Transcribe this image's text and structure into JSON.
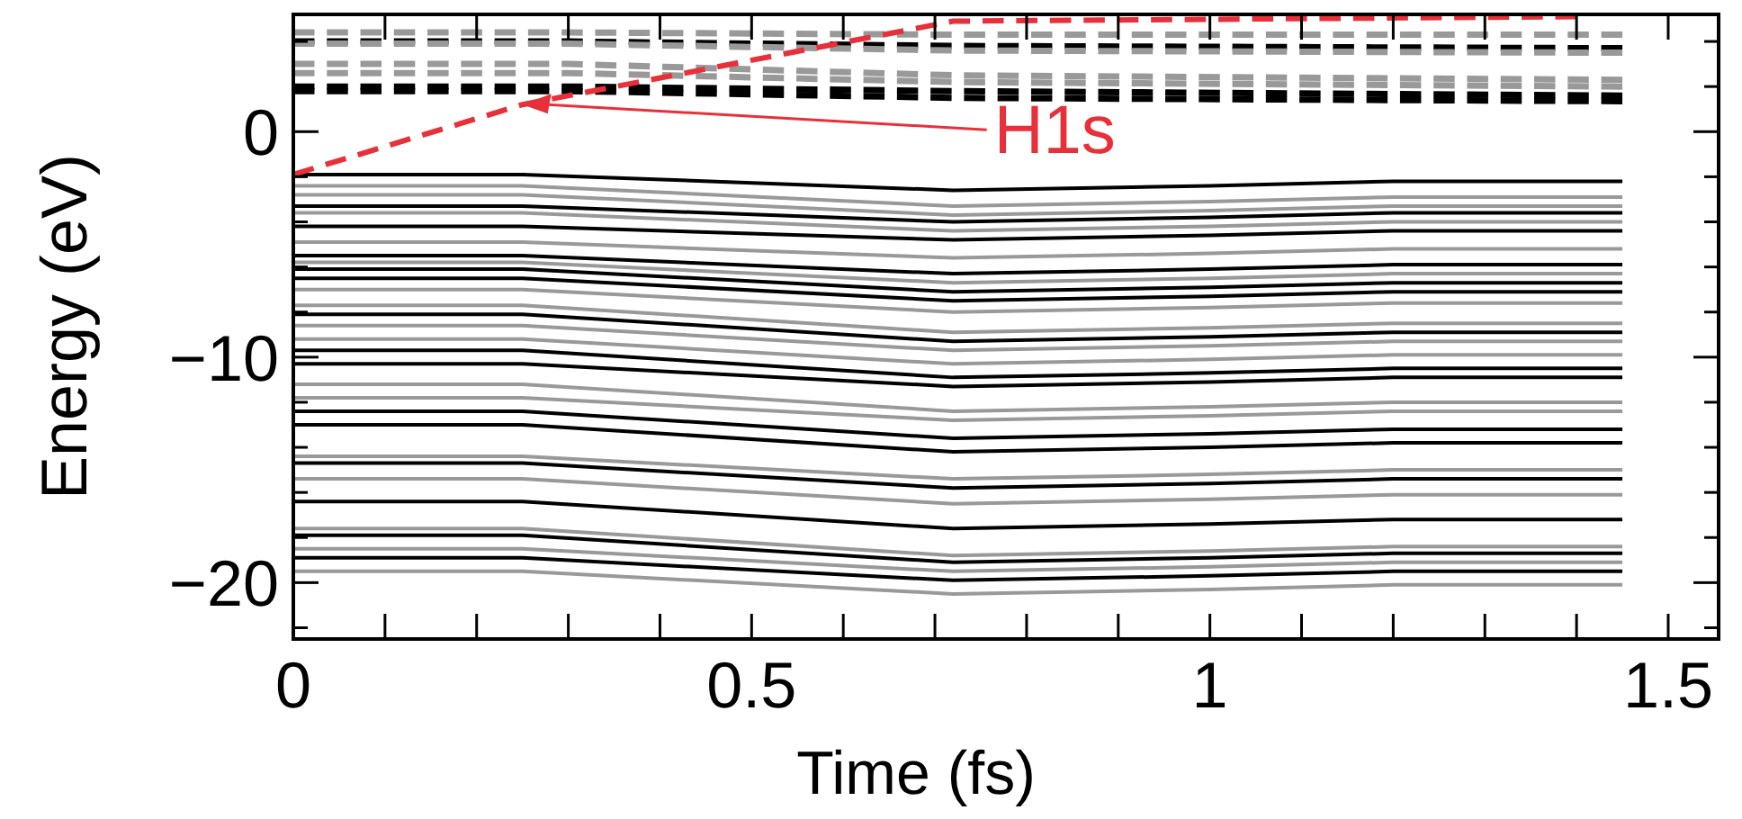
{
  "chart_data": {
    "type": "line",
    "xlabel": "Time (fs)",
    "ylabel": "Energy (eV)",
    "xlim": [
      0,
      1.555
    ],
    "ylim": [
      -22.5,
      5.2
    ],
    "xticks": [
      0,
      {
        "value": 0.1,
        "label": null
      },
      {
        "value": 0.2,
        "label": null
      },
      {
        "value": 0.3,
        "label": null
      },
      {
        "value": 0.4,
        "label": null
      },
      0.5,
      {
        "value": 0.6,
        "label": null
      },
      {
        "value": 0.7,
        "label": null
      },
      {
        "value": 0.8,
        "label": null
      },
      {
        "value": 0.9,
        "label": null
      },
      1,
      {
        "value": 1.1,
        "label": null
      },
      {
        "value": 1.2,
        "label": null
      },
      {
        "value": 1.3,
        "label": null
      },
      {
        "value": 1.4,
        "label": null
      },
      1.5
    ],
    "yticks": [
      {
        "value": -22,
        "label": null
      },
      {
        "value": -20,
        "label": "−20"
      },
      {
        "value": -18,
        "label": null
      },
      {
        "value": -16,
        "label": null
      },
      {
        "value": -14,
        "label": null
      },
      {
        "value": -12,
        "label": null
      },
      {
        "value": -10,
        "label": "−10"
      },
      {
        "value": -8,
        "label": null
      },
      {
        "value": -6,
        "label": null
      },
      {
        "value": -4,
        "label": null
      },
      {
        "value": -2,
        "label": null
      },
      0,
      {
        "value": 2,
        "label": null
      },
      {
        "value": 4,
        "label": null
      }
    ],
    "grid": false,
    "marker": "none",
    "series": [
      {
        "color": "#000000",
        "x": [
          0,
          0.25,
          0.72,
          1.0,
          1.2,
          1.45
        ],
        "values": [
          -1.9,
          -1.9,
          -2.6,
          -2.4,
          -2.2,
          -2.2
        ]
      },
      {
        "color": "#999999",
        "x": [
          0,
          0.25,
          0.72,
          1.0,
          1.2,
          1.45
        ],
        "values": [
          -2.4,
          -2.4,
          -3.3,
          -3.1,
          -2.9,
          -2.9
        ]
      },
      {
        "color": "#999999",
        "x": [
          0,
          0.25,
          0.72,
          1.0,
          1.2,
          1.45
        ],
        "values": [
          -2.8,
          -2.8,
          -3.7,
          -3.5,
          -3.3,
          -3.3
        ]
      },
      {
        "color": "#000000",
        "x": [
          0,
          0.25,
          0.72,
          1.0,
          1.2,
          1.45
        ],
        "values": [
          -3.3,
          -3.3,
          -4.0,
          -3.8,
          -3.6,
          -3.6
        ]
      },
      {
        "color": "#999999",
        "x": [
          0,
          0.25,
          0.72,
          1.0,
          1.2,
          1.45
        ],
        "values": [
          -3.6,
          -3.6,
          -4.4,
          -4.2,
          -4.0,
          -4.0
        ]
      },
      {
        "color": "#000000",
        "x": [
          0,
          0.25,
          0.72,
          1.0,
          1.2,
          1.45
        ],
        "values": [
          -4.2,
          -4.2,
          -4.8,
          -4.6,
          -4.4,
          -4.4
        ]
      },
      {
        "color": "#999999",
        "x": [
          0,
          0.25,
          0.72,
          1.0,
          1.2,
          1.45
        ],
        "values": [
          -4.9,
          -4.9,
          -5.6,
          -5.4,
          -5.2,
          -5.2
        ]
      },
      {
        "color": "#000000",
        "x": [
          0,
          0.25,
          0.72,
          1.0,
          1.2,
          1.45
        ],
        "values": [
          -5.5,
          -5.5,
          -6.3,
          -6.1,
          -5.9,
          -5.9
        ]
      },
      {
        "color": "#999999",
        "x": [
          0,
          0.25,
          0.72,
          1.0,
          1.2,
          1.45
        ],
        "values": [
          -5.8,
          -5.8,
          -6.7,
          -6.5,
          -6.3,
          -6.3
        ]
      },
      {
        "color": "#000000",
        "x": [
          0,
          0.25,
          0.72,
          1.0,
          1.2,
          1.45
        ],
        "values": [
          -6.1,
          -6.1,
          -7.1,
          -6.9,
          -6.7,
          -6.7
        ]
      },
      {
        "color": "#000000",
        "x": [
          0,
          0.25,
          0.72,
          1.0,
          1.2,
          1.45
        ],
        "values": [
          -6.5,
          -6.5,
          -7.5,
          -7.3,
          -7.1,
          -7.1
        ]
      },
      {
        "color": "#999999",
        "x": [
          0,
          0.25,
          0.72,
          1.0,
          1.2,
          1.45
        ],
        "values": [
          -7.0,
          -7.0,
          -8.0,
          -7.8,
          -7.6,
          -7.6
        ]
      },
      {
        "color": "#999999",
        "x": [
          0,
          0.25,
          0.72,
          1.0,
          1.2,
          1.45
        ],
        "values": [
          -7.7,
          -7.7,
          -8.9,
          -8.7,
          -8.5,
          -8.5
        ]
      },
      {
        "color": "#000000",
        "x": [
          0,
          0.25,
          0.72,
          1.0,
          1.2,
          1.45
        ],
        "values": [
          -8.1,
          -8.1,
          -9.3,
          -9.1,
          -8.9,
          -8.9
        ]
      },
      {
        "color": "#999999",
        "x": [
          0,
          0.25,
          0.72,
          1.0,
          1.2,
          1.45
        ],
        "values": [
          -8.6,
          -8.6,
          -9.7,
          -9.5,
          -9.3,
          -9.3
        ]
      },
      {
        "color": "#999999",
        "x": [
          0,
          0.25,
          0.72,
          1.0,
          1.2,
          1.45
        ],
        "values": [
          -9.2,
          -9.2,
          -10.3,
          -10.1,
          -9.9,
          -9.9
        ]
      },
      {
        "color": "#000000",
        "x": [
          0,
          0.25,
          0.72,
          1.0,
          1.2,
          1.45
        ],
        "values": [
          -9.7,
          -9.7,
          -10.9,
          -10.7,
          -10.5,
          -10.5
        ]
      },
      {
        "color": "#000000",
        "x": [
          0,
          0.25,
          0.72,
          1.0,
          1.2,
          1.45
        ],
        "values": [
          -10.3,
          -10.3,
          -11.3,
          -11.1,
          -10.9,
          -10.9
        ]
      },
      {
        "color": "#999999",
        "x": [
          0,
          0.25,
          0.72,
          1.0,
          1.2,
          1.45
        ],
        "values": [
          -11.2,
          -11.2,
          -12.4,
          -12.2,
          -12.0,
          -12.0
        ]
      },
      {
        "color": "#999999",
        "x": [
          0,
          0.25,
          0.72,
          1.0,
          1.2,
          1.45
        ],
        "values": [
          -11.8,
          -11.8,
          -12.8,
          -12.6,
          -12.4,
          -12.4
        ]
      },
      {
        "color": "#000000",
        "x": [
          0,
          0.25,
          0.72,
          1.0,
          1.2,
          1.45
        ],
        "values": [
          -12.4,
          -12.4,
          -13.6,
          -13.4,
          -13.2,
          -13.2
        ]
      },
      {
        "color": "#000000",
        "x": [
          0,
          0.25,
          0.72,
          1.0,
          1.2,
          1.45
        ],
        "values": [
          -13.0,
          -13.0,
          -14.2,
          -14.0,
          -13.8,
          -13.8
        ]
      },
      {
        "color": "#999999",
        "x": [
          0,
          0.25,
          0.72,
          1.0,
          1.2,
          1.45
        ],
        "values": [
          -14.4,
          -14.4,
          -15.4,
          -15.2,
          -15.0,
          -15.0
        ]
      },
      {
        "color": "#000000",
        "x": [
          0,
          0.25,
          0.72,
          1.0,
          1.2,
          1.45
        ],
        "values": [
          -14.7,
          -14.7,
          -15.8,
          -15.6,
          -15.4,
          -15.4
        ]
      },
      {
        "color": "#999999",
        "x": [
          0,
          0.25,
          0.72,
          1.0,
          1.2,
          1.45
        ],
        "values": [
          -15.4,
          -15.4,
          -16.5,
          -16.3,
          -16.1,
          -16.1
        ]
      },
      {
        "color": "#000000",
        "x": [
          0,
          0.25,
          0.72,
          1.0,
          1.2,
          1.45
        ],
        "values": [
          -16.4,
          -16.4,
          -17.6,
          -17.4,
          -17.2,
          -17.2
        ]
      },
      {
        "color": "#999999",
        "x": [
          0,
          0.25,
          0.72,
          1.0,
          1.2,
          1.45
        ],
        "values": [
          -17.6,
          -17.6,
          -18.8,
          -18.6,
          -18.4,
          -18.4
        ]
      },
      {
        "color": "#000000",
        "x": [
          0,
          0.25,
          0.72,
          1.0,
          1.2,
          1.45
        ],
        "values": [
          -17.9,
          -17.9,
          -19.1,
          -18.9,
          -18.7,
          -18.7
        ]
      },
      {
        "color": "#999999",
        "x": [
          0,
          0.25,
          0.72,
          1.0,
          1.2,
          1.45
        ],
        "values": [
          -18.5,
          -18.5,
          -19.5,
          -19.3,
          -19.1,
          -19.1
        ]
      },
      {
        "color": "#000000",
        "x": [
          0,
          0.25,
          0.72,
          1.0,
          1.2,
          1.45
        ],
        "values": [
          -18.9,
          -18.9,
          -19.9,
          -19.7,
          -19.5,
          -19.5
        ]
      },
      {
        "color": "#999999",
        "x": [
          0,
          0.25,
          0.72,
          1.0,
          1.2,
          1.45
        ],
        "values": [
          -19.5,
          -19.5,
          -20.5,
          -20.3,
          -20.1,
          -20.1
        ]
      },
      {
        "color": "#999999",
        "line_style": "dashed",
        "x": [
          0,
          0.3,
          0.72,
          1.45
        ],
        "values": [
          4.4,
          4.4,
          4.3,
          4.3
        ]
      },
      {
        "color": "#000000",
        "line_style": "dashed",
        "x": [
          0,
          0.3,
          0.72,
          1.45
        ],
        "values": [
          4.0,
          4.0,
          3.8,
          3.7
        ]
      },
      {
        "color": "#999999",
        "line_style": "dashed",
        "x": [
          0,
          0.3,
          0.72,
          1.45
        ],
        "values": [
          3.9,
          3.9,
          3.6,
          3.5
        ]
      },
      {
        "color": "#999999",
        "line_style": "dashed",
        "x": [
          0,
          0.3,
          0.72,
          1.45
        ],
        "values": [
          3.0,
          3.0,
          2.5,
          2.3
        ]
      },
      {
        "color": "#999999",
        "line_style": "dashed",
        "x": [
          0,
          0.3,
          0.72,
          1.45
        ],
        "values": [
          2.6,
          2.6,
          2.2,
          2.0
        ]
      },
      {
        "color": "#000000",
        "line_style": "dashed",
        "x": [
          0,
          0.3,
          0.72,
          1.45
        ],
        "values": [
          2.0,
          2.0,
          1.8,
          1.6
        ]
      },
      {
        "color": "#000000",
        "line_style": "dashed",
        "x": [
          0,
          0.3,
          0.72,
          1.45
        ],
        "values": [
          1.8,
          1.8,
          1.5,
          1.35
        ]
      },
      {
        "name": "H1s",
        "color": "#e8303a",
        "line_style": "dashed",
        "x": [
          0,
          0.25,
          0.72,
          1.4
        ],
        "values": [
          -1.9,
          1.2,
          4.9,
          5.1
        ]
      }
    ]
  }
}
